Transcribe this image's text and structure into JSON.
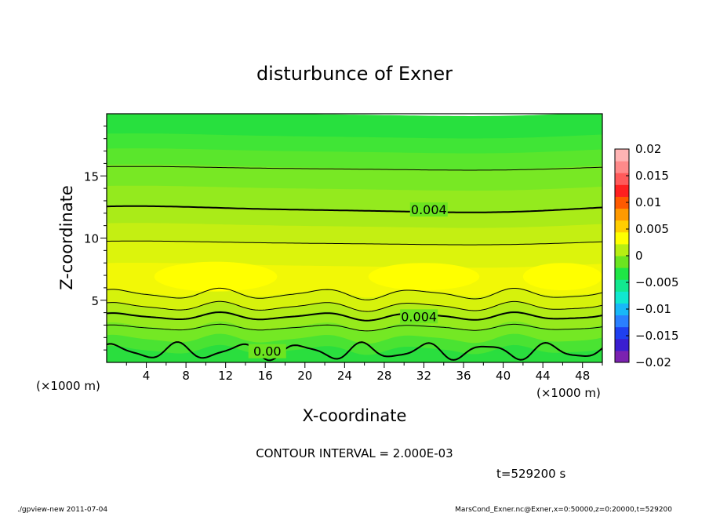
{
  "chart_data": {
    "type": "heatmap",
    "title": "disturbunce of Exner",
    "xlabel": "X-coordinate",
    "ylabel": "Z-coordinate",
    "x_unit_left": "(×1000 m)",
    "x_unit_right": "(×1000 m)",
    "xlim": [
      0,
      50
    ],
    "ylim": [
      0,
      20
    ],
    "x_ticks": [
      4,
      8,
      12,
      16,
      20,
      24,
      28,
      32,
      36,
      40,
      44,
      48
    ],
    "y_ticks": [
      5,
      10,
      15
    ],
    "contour_interval_label": "CONTOUR INTERVAL = 2.000E-03",
    "time_label": "t=529200 s",
    "colorbar": {
      "ticks": [
        "0.02",
        "0.015",
        "0.01",
        "0.005",
        "0",
        "−0.005",
        "−0.01",
        "−0.015",
        "−0.02"
      ],
      "range": [
        -0.02,
        0.02
      ],
      "colors": [
        "#7b22b0",
        "#3a1ed0",
        "#1f40f0",
        "#2a80ff",
        "#18b8f8",
        "#10e8d0",
        "#12e890",
        "#1fe646",
        "#6ce520",
        "#b8ee12",
        "#ffff00",
        "#ffce00",
        "#ff9a00",
        "#ff5a00",
        "#ff2020",
        "#ff5a5a",
        "#ff8a8a",
        "#ffb4b4"
      ]
    },
    "bands": [
      {
        "z_top": 20.0,
        "value": 0.0005,
        "color": "#28e03e"
      },
      {
        "z_top": 18.2,
        "value": 0.0015,
        "color": "#40e536"
      },
      {
        "z_top": 17.0,
        "value": 0.0025,
        "color": "#5ae62c"
      },
      {
        "z_top": 15.7,
        "value": 0.003,
        "color": "#78e824"
      },
      {
        "z_top": 14.0,
        "value": 0.0035,
        "color": "#94ea1e"
      },
      {
        "z_top": 12.3,
        "value": 0.0045,
        "color": "#aaeb18"
      },
      {
        "z_top": 11.0,
        "value": 0.005,
        "color": "#c4ef12"
      },
      {
        "z_top": 9.6,
        "value": 0.0055,
        "color": "#dcf40c"
      },
      {
        "z_top": 7.8,
        "value": 0.006,
        "color": "#f2f806"
      },
      {
        "z_top": 5.6,
        "value": 0.005,
        "color": "#d6f20c"
      },
      {
        "z_top": 4.5,
        "value": 0.0045,
        "color": "#b2ec16"
      },
      {
        "z_top": 3.8,
        "value": 0.004,
        "color": "#96ea1c"
      },
      {
        "z_top": 2.9,
        "value": 0.003,
        "color": "#74e824"
      },
      {
        "z_top": 1.9,
        "value": 0.0015,
        "color": "#4ae332"
      },
      {
        "z_top": 1.0,
        "value": 0.0005,
        "color": "#2ade3e"
      }
    ],
    "contours": [
      {
        "level": 0.002,
        "z": 15.6,
        "amp": 0.15,
        "k": 1.0,
        "bold": false
      },
      {
        "level": 0.004,
        "z": 12.3,
        "amp": 0.25,
        "k": 1.0,
        "bold": true
      },
      {
        "level": 0.006,
        "z": 9.6,
        "amp": 0.15,
        "k": 1.0,
        "bold": false
      },
      {
        "level": 0.006,
        "z": 5.5,
        "amp": 0.35,
        "k": 5.0,
        "bold": false
      },
      {
        "level": 0.005,
        "z": 4.5,
        "amp": 0.3,
        "k": 5.0,
        "bold": false
      },
      {
        "level": 0.004,
        "z": 3.7,
        "amp": 0.25,
        "k": 5.0,
        "bold": true
      },
      {
        "level": 0.002,
        "z": 2.8,
        "amp": 0.2,
        "k": 5.0,
        "bold": false
      },
      {
        "level": 0.0,
        "z": 0.9,
        "amp": 0.55,
        "k": 8.0,
        "bold": true
      }
    ],
    "contour_labels": [
      {
        "text": "0.004",
        "x": 32.5,
        "z": 12.3
      },
      {
        "text": "0.004",
        "x": 31.5,
        "z": 3.7
      },
      {
        "text": "0.00",
        "x": 16.2,
        "z": 0.9
      }
    ]
  },
  "footer": {
    "left": "./gpview-new   2011-07-04",
    "right": "MarsCond_Exner.nc@Exner,x=0:50000,z=0:20000,t=529200"
  }
}
